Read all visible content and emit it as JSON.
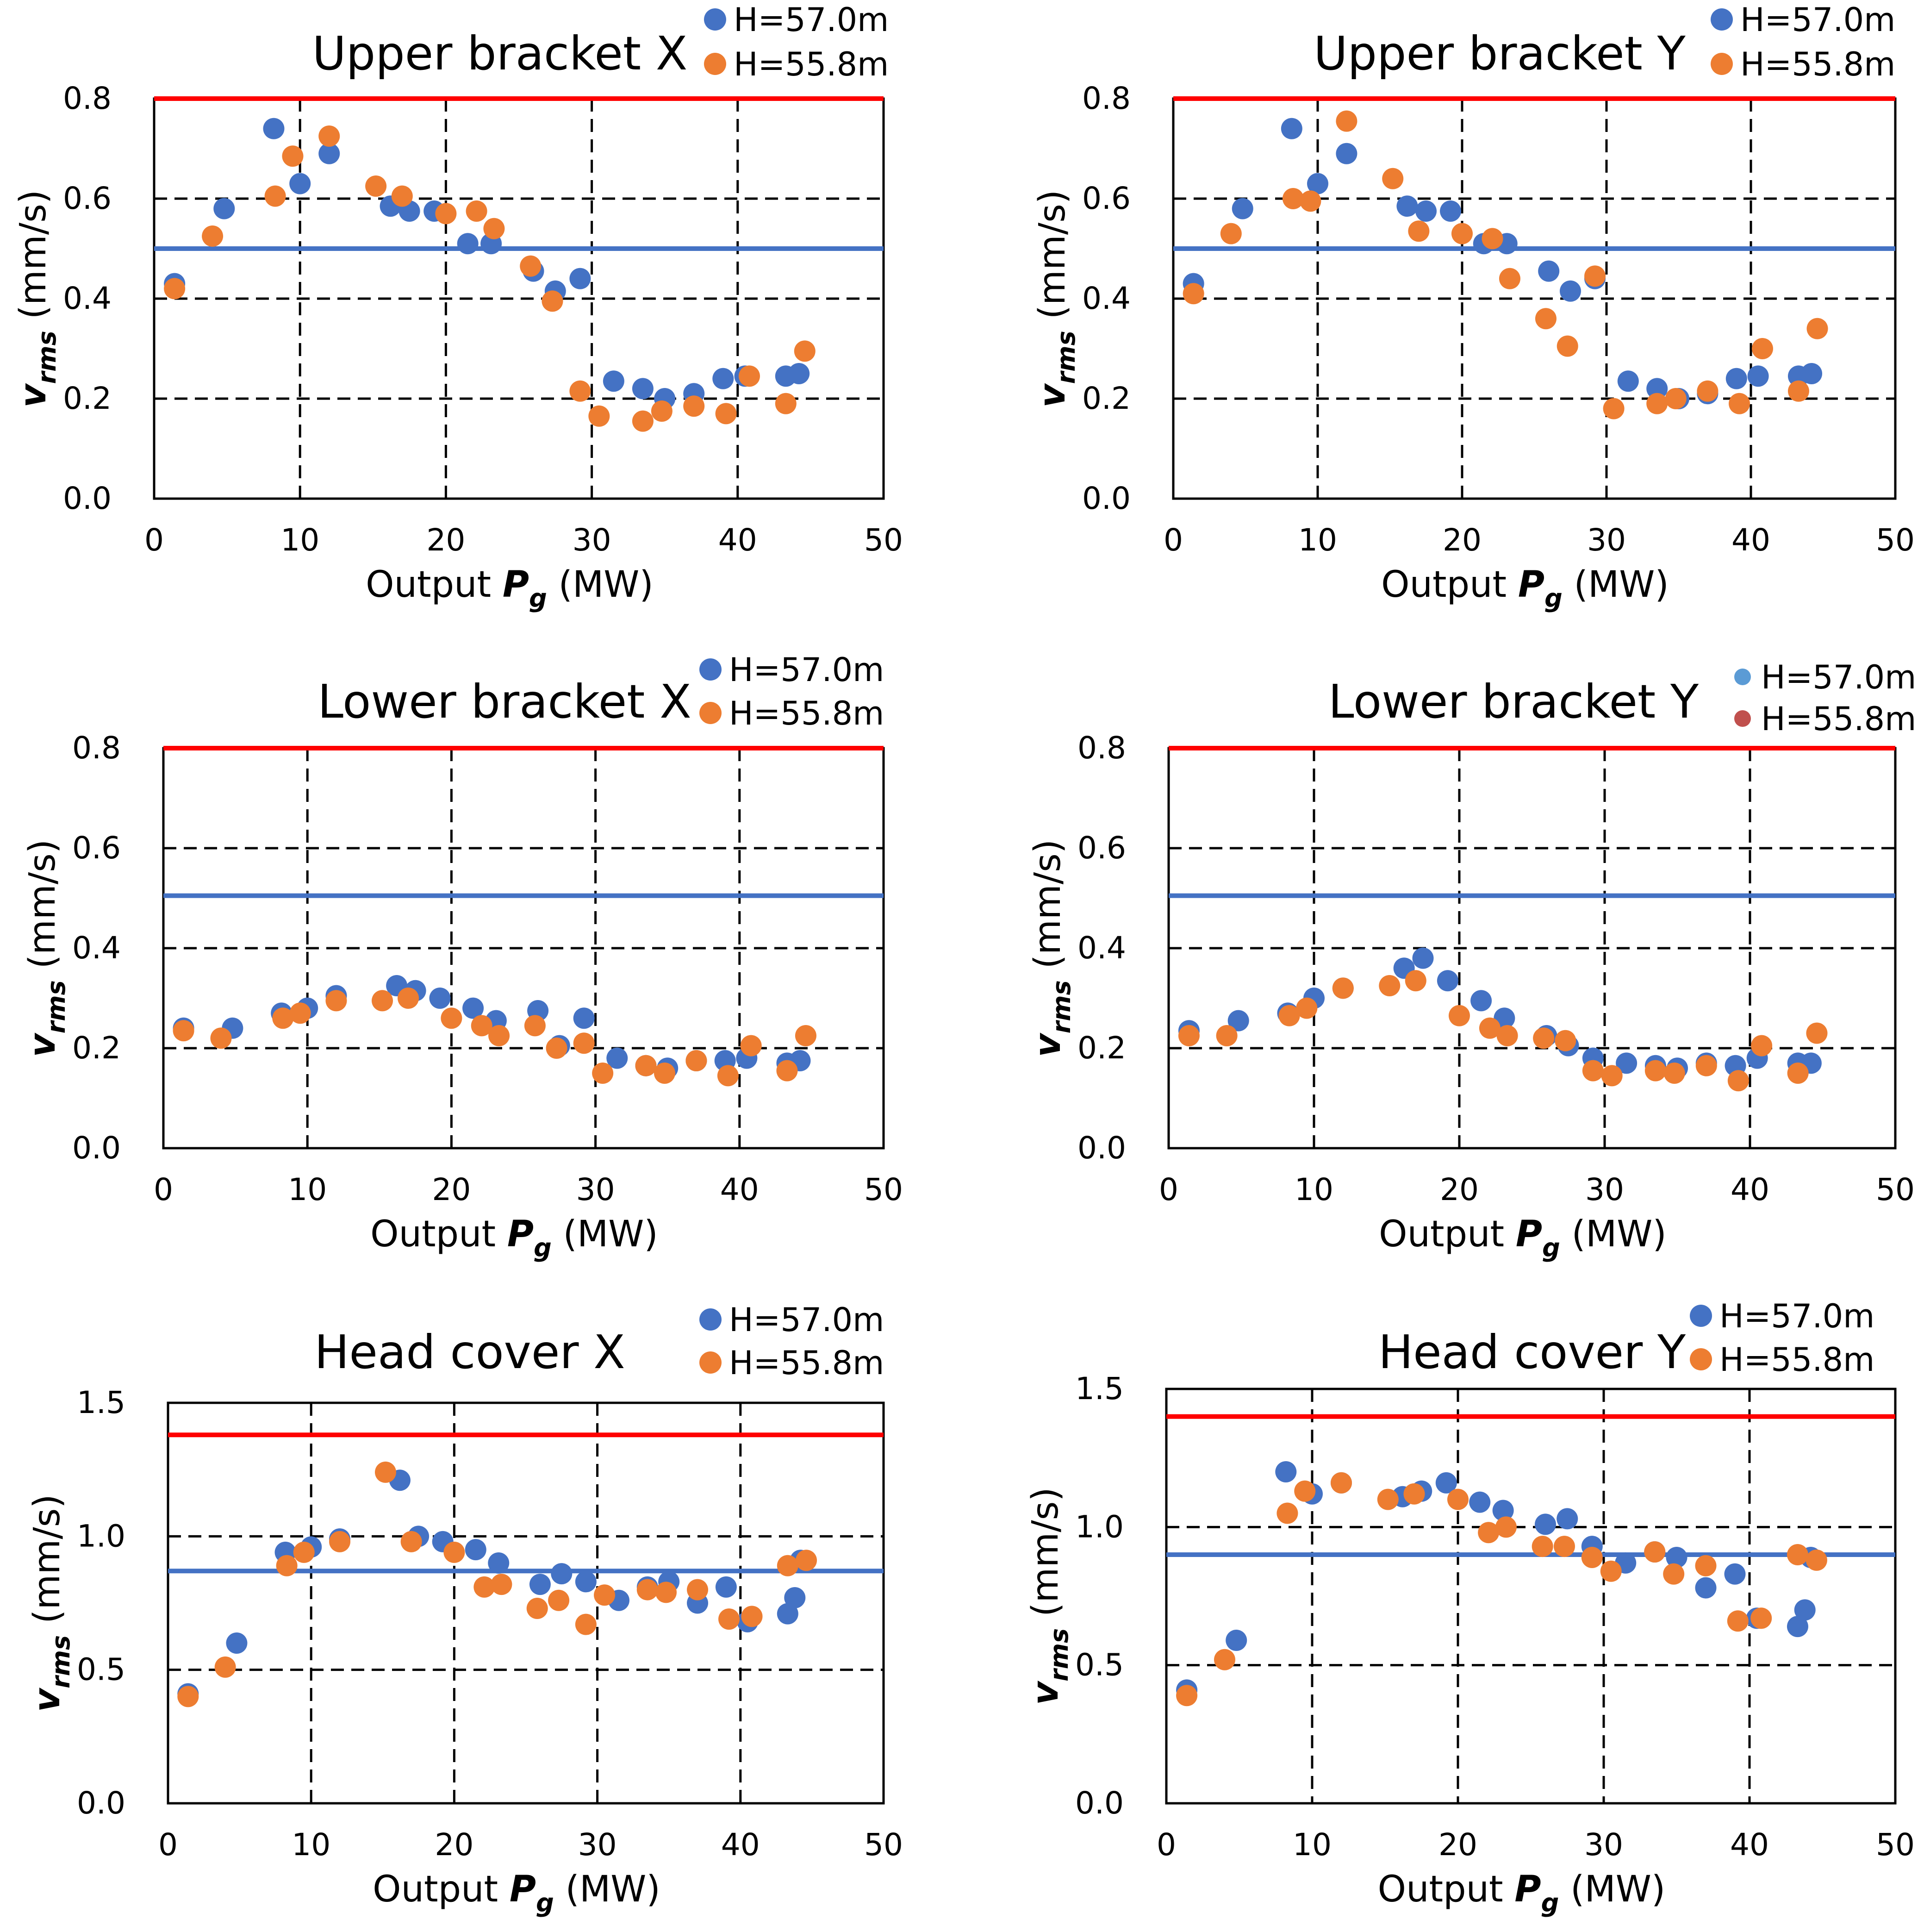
{
  "colors": {
    "series_57": "#4472C4",
    "series_55": "#ED7D31",
    "limit_red": "#FF0000",
    "limit_blue": "#4472C4",
    "legend_alt_57": "#5B9BD5",
    "legend_alt_55": "#C0504D"
  },
  "axis_text": {
    "xlabel_prefix": "Output ",
    "xlabel_symbol": "P",
    "xlabel_sub": "g",
    "xlabel_unit": "(MW)",
    "ylabel_symbol": "v",
    "ylabel_sub": "rms",
    "ylabel_unit": "(mm/s)"
  },
  "chart_data": [
    {
      "id": "upper-bracket-x",
      "type": "scatter",
      "title": "Upper bracket X",
      "xlabel": "Output Pg (MW)",
      "ylabel": "vrms (mm/s)",
      "xlim": [
        0,
        50
      ],
      "ylim": [
        0,
        0.8
      ],
      "xticks": [
        0,
        10,
        20,
        30,
        40,
        50
      ],
      "xtick_labels": [
        "0",
        "10",
        "20",
        "30",
        "40",
        "50"
      ],
      "yticks": [
        0,
        0.2,
        0.4,
        0.6,
        0.8
      ],
      "ytick_labels": [
        "0.0",
        "0.2",
        "0.4",
        "0.6",
        "0.8"
      ],
      "grid_x": [
        10,
        20,
        30,
        40
      ],
      "grid_y": [
        0.2,
        0.4,
        0.6
      ],
      "reference_lines": [
        {
          "color": "red",
          "y": 0.8
        },
        {
          "color": "blue",
          "y": 0.5
        }
      ],
      "legend_placement": "top-right",
      "series": [
        {
          "name": "H=57.0m",
          "color": "series_57",
          "x": [
            1.4,
            4.8,
            8.2,
            10.0,
            12.0,
            16.2,
            17.5,
            19.2,
            21.5,
            23.1,
            26.0,
            27.5,
            29.2,
            31.5,
            33.5,
            35.0,
            37.0,
            39.0,
            40.5,
            43.3,
            44.2
          ],
          "y": [
            0.43,
            0.58,
            0.74,
            0.63,
            0.69,
            0.585,
            0.575,
            0.575,
            0.51,
            0.51,
            0.455,
            0.415,
            0.44,
            0.235,
            0.22,
            0.2,
            0.21,
            0.24,
            0.245,
            0.245,
            0.25
          ]
        },
        {
          "name": "H=55.8m",
          "color": "series_55",
          "x": [
            1.4,
            4.0,
            8.3,
            9.5,
            12.0,
            15.2,
            17.0,
            20.0,
            22.1,
            23.3,
            25.8,
            27.3,
            29.2,
            30.5,
            33.5,
            34.8,
            37.0,
            39.2,
            40.8,
            43.3,
            44.6
          ],
          "y": [
            0.42,
            0.525,
            0.605,
            0.685,
            0.725,
            0.625,
            0.605,
            0.57,
            0.575,
            0.54,
            0.465,
            0.395,
            0.215,
            0.165,
            0.155,
            0.175,
            0.185,
            0.17,
            0.245,
            0.19,
            0.295
          ]
        }
      ]
    },
    {
      "id": "upper-bracket-y",
      "type": "scatter",
      "title": "Upper bracket Y",
      "xlabel": "Output Pg (MW)",
      "ylabel": "vrms (mm/s)",
      "xlim": [
        0,
        50
      ],
      "ylim": [
        0,
        0.8
      ],
      "xticks": [
        0,
        10,
        20,
        30,
        40,
        50
      ],
      "xtick_labels": [
        "0",
        "10",
        "20",
        "30",
        "40",
        "50"
      ],
      "yticks": [
        0,
        0.2,
        0.4,
        0.6,
        0.8
      ],
      "ytick_labels": [
        "0.0",
        "0.2",
        "0.4",
        "0.6",
        "0.8"
      ],
      "grid_x": [
        10,
        20,
        30,
        40
      ],
      "grid_y": [
        0.2,
        0.4,
        0.6
      ],
      "reference_lines": [
        {
          "color": "red",
          "y": 0.8
        },
        {
          "color": "blue",
          "y": 0.5
        }
      ],
      "legend_placement": "top-right",
      "series": [
        {
          "name": "H=57.0m",
          "color": "series_57",
          "x": [
            1.4,
            4.8,
            8.2,
            10.0,
            12.0,
            16.2,
            17.5,
            19.2,
            21.5,
            23.1,
            26.0,
            27.5,
            29.2,
            31.5,
            33.5,
            35.0,
            37.0,
            39.0,
            40.5,
            43.3,
            44.2
          ],
          "y": [
            0.43,
            0.58,
            0.74,
            0.63,
            0.69,
            0.585,
            0.575,
            0.575,
            0.51,
            0.51,
            0.455,
            0.415,
            0.44,
            0.235,
            0.22,
            0.2,
            0.21,
            0.24,
            0.245,
            0.245,
            0.25
          ]
        },
        {
          "name": "H=55.8m",
          "color": "series_55",
          "x": [
            1.4,
            4.0,
            8.3,
            9.5,
            12.0,
            15.2,
            17.0,
            20.0,
            22.1,
            23.3,
            25.8,
            27.3,
            29.2,
            30.5,
            33.5,
            34.8,
            37.0,
            39.2,
            40.8,
            43.3,
            44.6
          ],
          "y": [
            0.41,
            0.53,
            0.6,
            0.595,
            0.755,
            0.64,
            0.535,
            0.53,
            0.52,
            0.44,
            0.36,
            0.305,
            0.445,
            0.18,
            0.19,
            0.2,
            0.215,
            0.19,
            0.3,
            0.215,
            0.34
          ]
        }
      ]
    },
    {
      "id": "lower-bracket-x",
      "type": "scatter",
      "title": "Lower bracket X",
      "xlabel": "Output Pg (MW)",
      "ylabel": "vrms (mm/s)",
      "xlim": [
        0,
        50
      ],
      "ylim": [
        0,
        0.8
      ],
      "xticks": [
        0,
        10,
        20,
        30,
        40,
        50
      ],
      "xtick_labels": [
        "0",
        "10",
        "20",
        "30",
        "40",
        "50"
      ],
      "yticks": [
        0,
        0.2,
        0.4,
        0.6,
        0.8
      ],
      "ytick_labels": [
        "0.0",
        "0.2",
        "0.4",
        "0.6",
        "0.8"
      ],
      "grid_x": [
        10,
        20,
        30,
        40
      ],
      "grid_y": [
        0.2,
        0.4,
        0.6
      ],
      "reference_lines": [
        {
          "color": "red",
          "y": 0.8
        },
        {
          "color": "blue",
          "y": 0.505
        }
      ],
      "legend_placement": "top-right",
      "series": [
        {
          "name": "H=57.0m",
          "color": "series_57",
          "x": [
            1.4,
            4.8,
            8.2,
            10.0,
            12.0,
            16.2,
            17.5,
            19.2,
            21.5,
            23.1,
            26.0,
            27.5,
            29.2,
            31.5,
            33.5,
            35.0,
            37.0,
            39.0,
            40.5,
            43.3,
            44.2
          ],
          "y": [
            0.24,
            0.24,
            0.27,
            0.28,
            0.305,
            0.325,
            0.315,
            0.3,
            0.28,
            0.255,
            0.275,
            0.205,
            0.26,
            0.18,
            0.165,
            0.16,
            0.175,
            0.175,
            0.18,
            0.17,
            0.175
          ]
        },
        {
          "name": "H=55.8m",
          "color": "series_55",
          "x": [
            1.4,
            4.0,
            8.3,
            9.5,
            12.0,
            15.2,
            17.0,
            20.0,
            22.1,
            23.3,
            25.8,
            27.3,
            29.2,
            30.5,
            33.5,
            34.8,
            37.0,
            39.2,
            40.8,
            43.3,
            44.6
          ],
          "y": [
            0.235,
            0.22,
            0.26,
            0.27,
            0.295,
            0.295,
            0.3,
            0.26,
            0.245,
            0.225,
            0.245,
            0.2,
            0.21,
            0.15,
            0.165,
            0.15,
            0.175,
            0.145,
            0.205,
            0.155,
            0.225
          ]
        }
      ]
    },
    {
      "id": "lower-bracket-y",
      "type": "scatter",
      "title": "Lower bracket Y",
      "xlabel": "Output Pg (MW)",
      "ylabel": "vrms (mm/s)",
      "xlim": [
        0,
        50
      ],
      "ylim": [
        0,
        0.8
      ],
      "xticks": [
        0,
        10,
        20,
        30,
        40,
        50
      ],
      "xtick_labels": [
        "0",
        "10",
        "20",
        "30",
        "40",
        "50"
      ],
      "yticks": [
        0,
        0.2,
        0.4,
        0.6,
        0.8
      ],
      "ytick_labels": [
        "0.0",
        "0.2",
        "0.4",
        "0.6",
        "0.8"
      ],
      "grid_x": [
        10,
        20,
        30,
        40
      ],
      "grid_y": [
        0.2,
        0.4,
        0.6
      ],
      "reference_lines": [
        {
          "color": "red",
          "y": 0.8
        },
        {
          "color": "blue",
          "y": 0.505
        }
      ],
      "legend_placement": "top-right",
      "legend_colors": [
        "legend_alt_57",
        "legend_alt_55"
      ],
      "series": [
        {
          "name": "H=57.0m",
          "color": "series_57",
          "x": [
            1.4,
            4.8,
            8.2,
            10.0,
            12.0,
            16.2,
            17.5,
            19.2,
            21.5,
            23.1,
            26.0,
            27.5,
            29.2,
            31.5,
            33.5,
            35.0,
            37.0,
            39.0,
            40.5,
            43.3,
            44.2
          ],
          "y": [
            0.235,
            0.255,
            0.27,
            0.3,
            0.32,
            0.36,
            0.38,
            0.335,
            0.295,
            0.26,
            0.225,
            0.205,
            0.18,
            0.17,
            0.165,
            0.16,
            0.17,
            0.165,
            0.18,
            0.17,
            0.17
          ]
        },
        {
          "name": "H=55.8m",
          "color": "series_55",
          "x": [
            1.4,
            4.0,
            8.3,
            9.5,
            12.0,
            15.2,
            17.0,
            20.0,
            22.1,
            23.3,
            25.8,
            27.3,
            29.2,
            30.5,
            33.5,
            34.8,
            37.0,
            39.2,
            40.8,
            43.3,
            44.6
          ],
          "y": [
            0.225,
            0.225,
            0.265,
            0.28,
            0.32,
            0.325,
            0.335,
            0.265,
            0.24,
            0.225,
            0.22,
            0.215,
            0.155,
            0.145,
            0.155,
            0.15,
            0.165,
            0.135,
            0.205,
            0.15,
            0.23
          ]
        }
      ]
    },
    {
      "id": "head-cover-x",
      "type": "scatter",
      "title": "Head cover X",
      "xlabel": "Output Pg (MW)",
      "ylabel": "vrms (mm/s)",
      "xlim": [
        0,
        50
      ],
      "ylim": [
        0,
        1.5
      ],
      "xticks": [
        0,
        10,
        20,
        30,
        40,
        50
      ],
      "xtick_labels": [
        "0",
        "10",
        "20",
        "30",
        "40",
        "50"
      ],
      "yticks": [
        0,
        0.5,
        1.0,
        1.5
      ],
      "ytick_labels": [
        "0.0",
        "0.5",
        "1.0",
        "1.5"
      ],
      "grid_x": [
        10,
        20,
        30,
        40
      ],
      "grid_y": [
        0.5,
        1.0
      ],
      "reference_lines": [
        {
          "color": "red",
          "y": 1.38
        },
        {
          "color": "blue",
          "y": 0.87
        }
      ],
      "legend_placement": "top-right",
      "series": [
        {
          "name": "H=57.0m",
          "color": "series_57",
          "x": [
            1.4,
            4.8,
            8.2,
            10.0,
            12.0,
            16.2,
            17.5,
            19.2,
            21.5,
            23.1,
            26.0,
            27.5,
            29.2,
            31.5,
            33.5,
            35.0,
            37.0,
            39.0,
            40.5,
            43.3,
            43.8,
            44.2
          ],
          "y": [
            0.41,
            0.6,
            0.94,
            0.96,
            0.99,
            1.21,
            1.0,
            0.98,
            0.95,
            0.9,
            0.82,
            0.86,
            0.83,
            0.76,
            0.81,
            0.83,
            0.75,
            0.81,
            0.68,
            0.71,
            0.77,
            0.91
          ]
        },
        {
          "name": "H=55.8m",
          "color": "series_55",
          "x": [
            1.4,
            4.0,
            8.3,
            9.5,
            12.0,
            15.2,
            17.0,
            20.0,
            22.1,
            23.3,
            25.8,
            27.3,
            29.2,
            30.5,
            33.5,
            34.8,
            37.0,
            39.2,
            40.8,
            43.3,
            44.6
          ],
          "y": [
            0.4,
            0.51,
            0.89,
            0.94,
            0.98,
            1.24,
            0.98,
            0.94,
            0.81,
            0.82,
            0.73,
            0.76,
            0.67,
            0.78,
            0.8,
            0.79,
            0.8,
            0.69,
            0.7,
            0.89,
            0.91
          ]
        }
      ]
    },
    {
      "id": "head-cover-y",
      "type": "scatter",
      "title": "Head cover Y",
      "xlabel": "Output Pg (MW)",
      "ylabel": "vrms (mm/s)",
      "xlim": [
        0,
        50
      ],
      "ylim": [
        0,
        1.5
      ],
      "xticks": [
        0,
        10,
        20,
        30,
        40,
        50
      ],
      "xtick_labels": [
        "0",
        "10",
        "20",
        "30",
        "40",
        "50"
      ],
      "yticks": [
        0,
        0.5,
        1.0,
        1.5
      ],
      "ytick_labels": [
        "0.0",
        "0.5",
        "1.0",
        "1.5"
      ],
      "grid_x": [
        10,
        20,
        30,
        40
      ],
      "grid_y": [
        0.5,
        1.0
      ],
      "reference_lines": [
        {
          "color": "red",
          "y": 1.4
        },
        {
          "color": "blue",
          "y": 0.9
        }
      ],
      "legend_placement": "top-right",
      "series": [
        {
          "name": "H=57.0m",
          "color": "series_57",
          "x": [
            1.4,
            4.8,
            8.2,
            10.0,
            12.0,
            16.2,
            17.5,
            19.2,
            21.5,
            23.1,
            26.0,
            27.5,
            29.2,
            31.5,
            33.5,
            35.0,
            37.0,
            39.0,
            40.5,
            43.3,
            43.8,
            44.2
          ],
          "y": [
            0.41,
            0.59,
            1.2,
            1.12,
            1.16,
            1.11,
            1.13,
            1.16,
            1.09,
            1.06,
            1.01,
            1.03,
            0.93,
            0.87,
            0.91,
            0.89,
            0.78,
            0.83,
            0.67,
            0.64,
            0.7,
            0.89
          ]
        },
        {
          "name": "H=55.8m",
          "color": "series_55",
          "x": [
            1.4,
            4.0,
            8.3,
            9.5,
            12.0,
            15.2,
            17.0,
            20.0,
            22.1,
            23.3,
            25.8,
            27.3,
            29.2,
            30.5,
            33.5,
            34.8,
            37.0,
            39.2,
            40.8,
            43.3,
            44.6
          ],
          "y": [
            0.39,
            0.52,
            1.05,
            1.13,
            1.16,
            1.1,
            1.12,
            1.1,
            0.98,
            1.0,
            0.93,
            0.93,
            0.89,
            0.84,
            0.91,
            0.83,
            0.86,
            0.66,
            0.67,
            0.9,
            0.88
          ]
        }
      ]
    }
  ]
}
